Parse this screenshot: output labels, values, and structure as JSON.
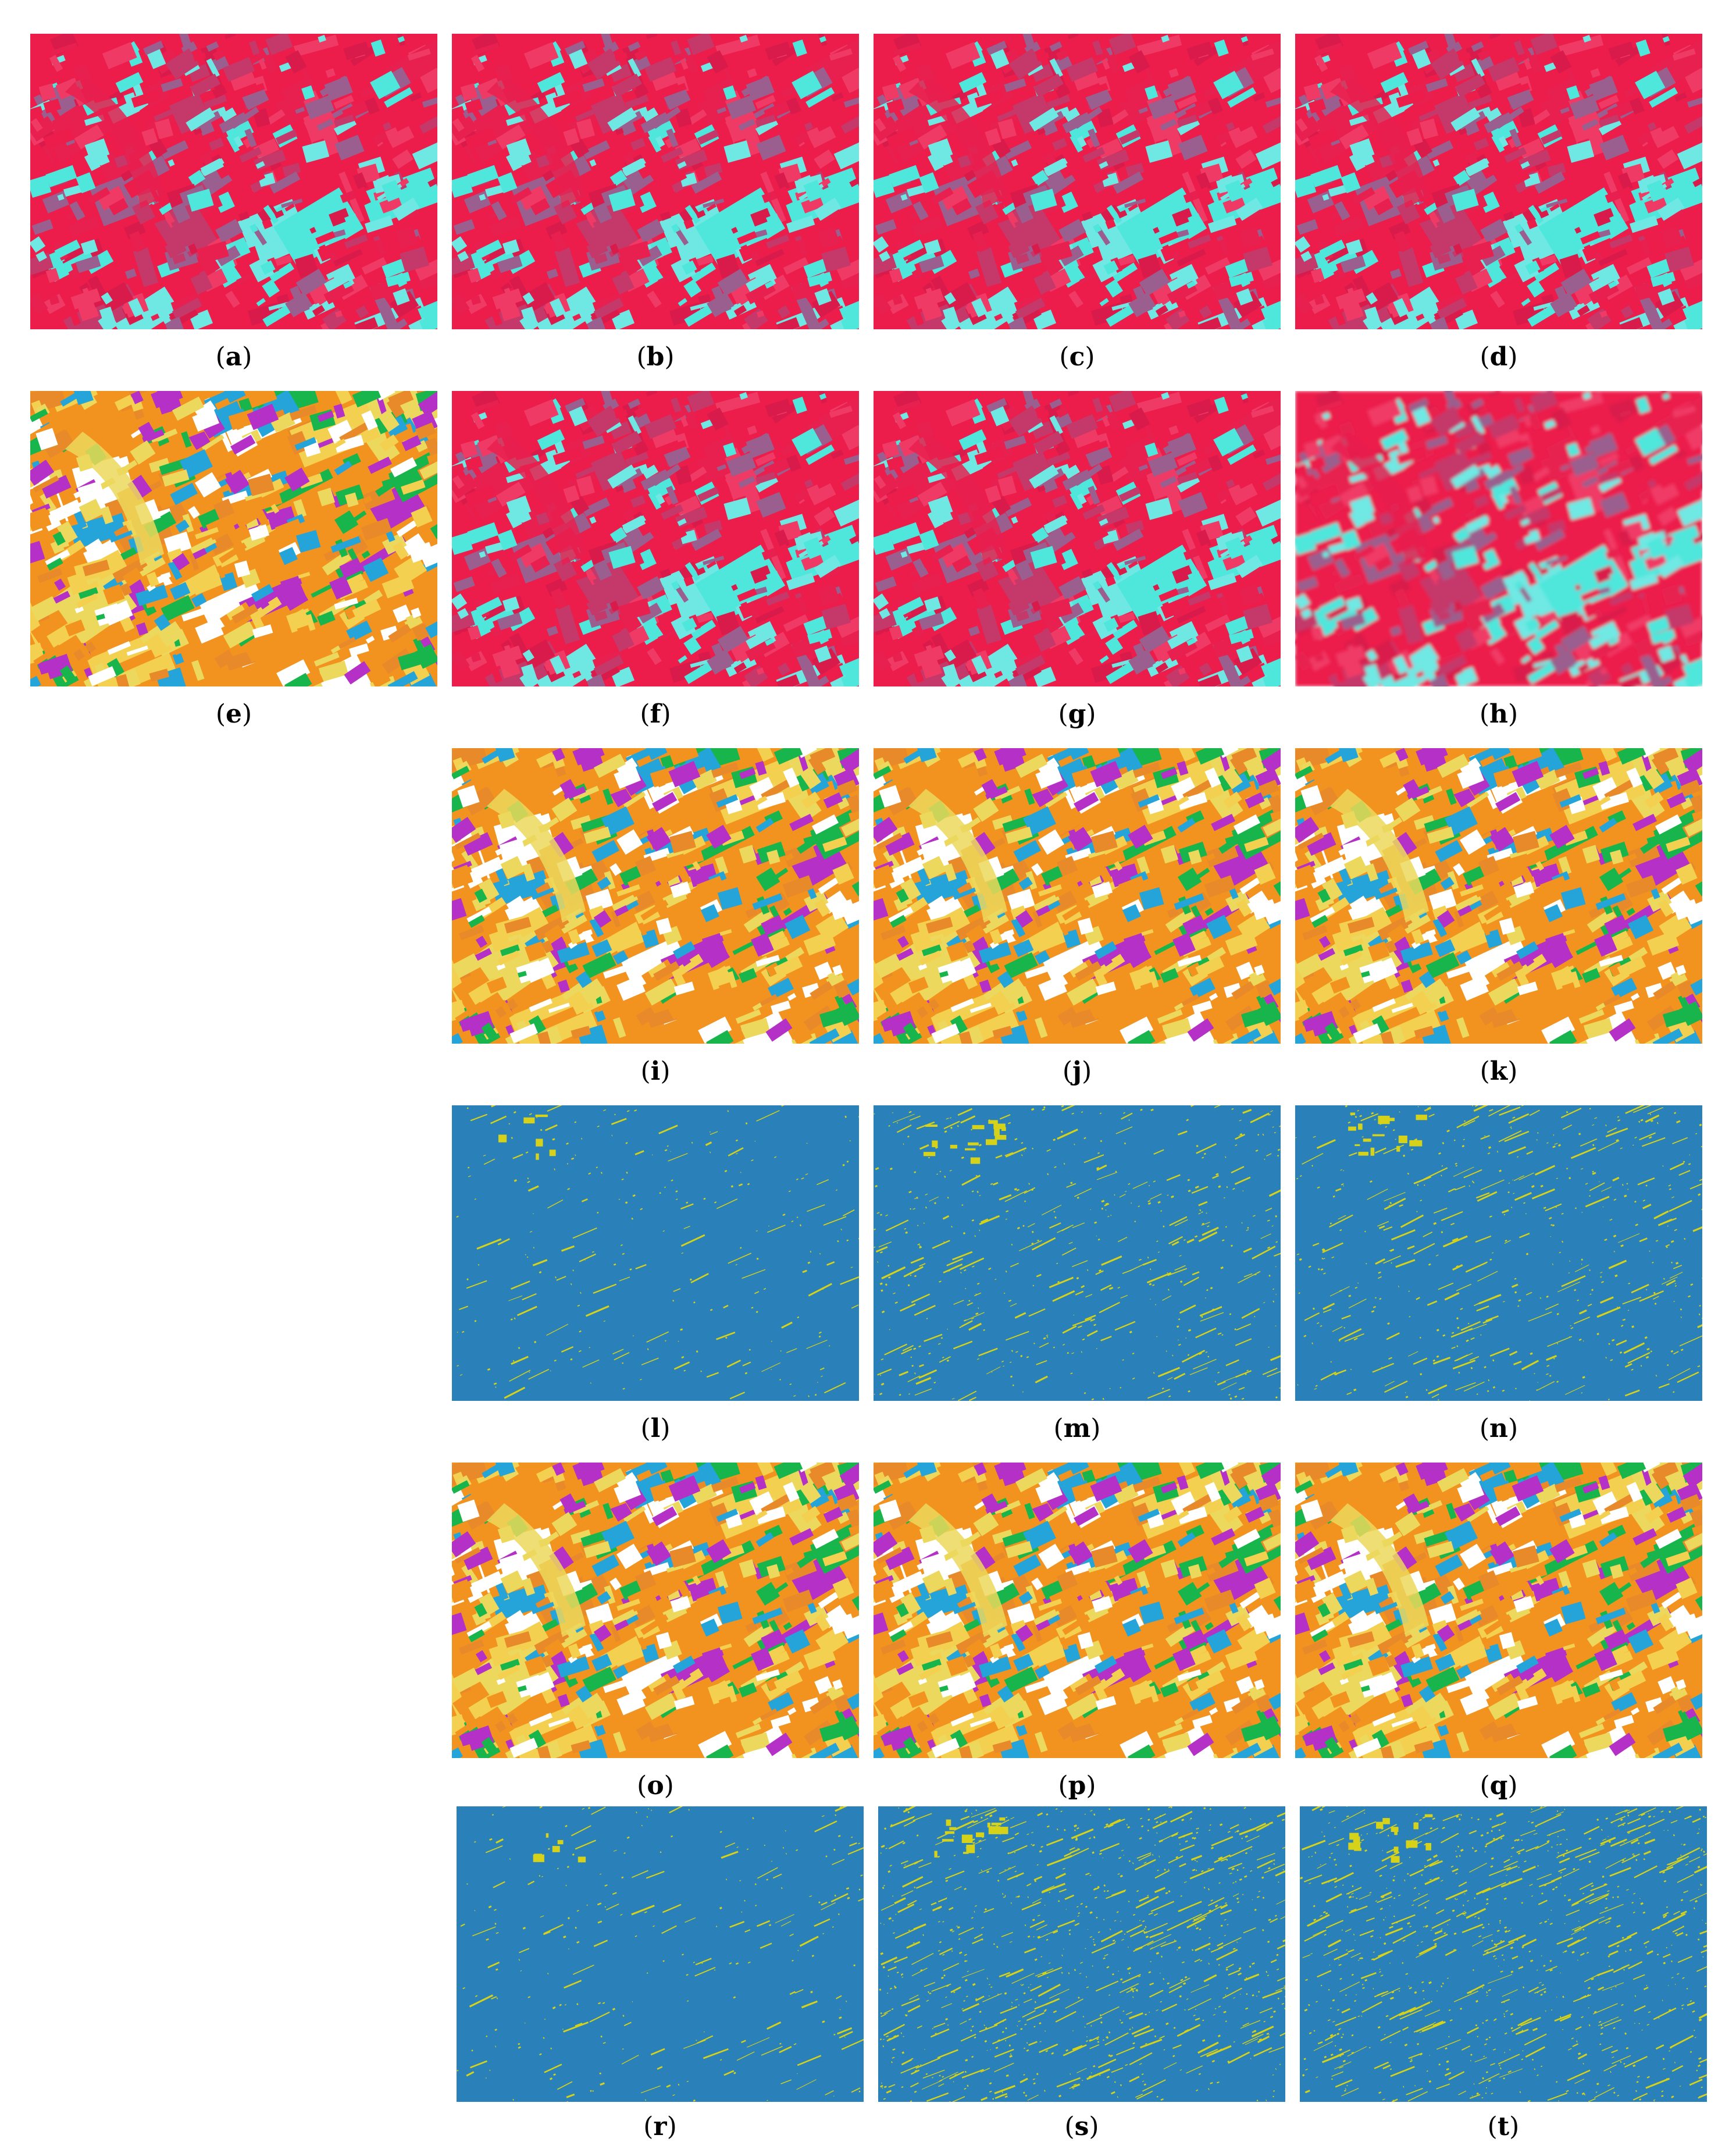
{
  "palette": {
    "false_color": [
      "#ec1c4b",
      "#e8204f",
      "#d91b4b",
      "#f03a66",
      "#4fe6dc",
      "#6fe8e3",
      "#9a5f8e",
      "#c5386a"
    ],
    "classmap": [
      "#f2931f",
      "#ecd85c",
      "#17b54b",
      "#e88a2a",
      "#f4d050",
      "#25a4d9",
      "#ffffff",
      "#b530c6"
    ],
    "changemap": {
      "background": "#2a80b9",
      "change": "#d6d21a"
    }
  },
  "panels": [
    {
      "id": "a",
      "caption": "a",
      "kind": "false_color"
    },
    {
      "id": "b",
      "caption": "b",
      "kind": "false_color"
    },
    {
      "id": "c",
      "caption": "c",
      "kind": "false_color"
    },
    {
      "id": "d",
      "caption": "d",
      "kind": "false_color"
    },
    {
      "id": "e",
      "caption": "e",
      "kind": "classmap"
    },
    {
      "id": "f",
      "caption": "f",
      "kind": "false_color"
    },
    {
      "id": "g",
      "caption": "g",
      "kind": "false_color"
    },
    {
      "id": "h",
      "caption": "h",
      "kind": "false_color_blurred"
    },
    {
      "id": "i",
      "caption": "i",
      "kind": "classmap"
    },
    {
      "id": "j",
      "caption": "j",
      "kind": "classmap"
    },
    {
      "id": "k",
      "caption": "k",
      "kind": "classmap"
    },
    {
      "id": "l",
      "caption": "l",
      "kind": "changemap",
      "density": "low"
    },
    {
      "id": "m",
      "caption": "m",
      "kind": "changemap",
      "density": "medium"
    },
    {
      "id": "n",
      "caption": "n",
      "kind": "changemap",
      "density": "medium"
    },
    {
      "id": "o",
      "caption": "o",
      "kind": "classmap"
    },
    {
      "id": "p",
      "caption": "p",
      "kind": "classmap"
    },
    {
      "id": "q",
      "caption": "q",
      "kind": "classmap"
    },
    {
      "id": "r",
      "caption": "r",
      "kind": "changemap",
      "density": "low"
    },
    {
      "id": "s",
      "caption": "s",
      "kind": "changemap",
      "density": "high"
    },
    {
      "id": "t",
      "caption": "t",
      "kind": "changemap",
      "density": "high"
    }
  ]
}
